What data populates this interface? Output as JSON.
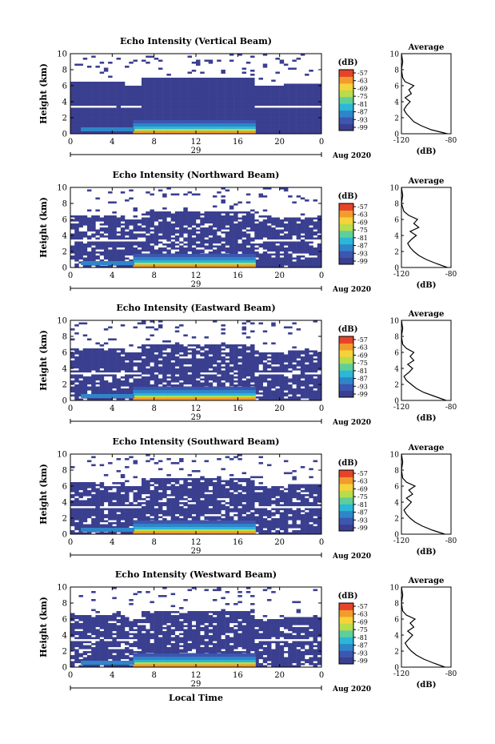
{
  "figure": {
    "xlabel": "Local Time",
    "date_label": "Aug 2020",
    "day_label": "29",
    "ylabel": "Height (km)",
    "avg_title": "Average",
    "avg_xlabel": "(dB)",
    "cb_title": "(dB)",
    "cb_ticks": [
      "-57",
      "-63",
      "-69",
      "-75",
      "-81",
      "-87",
      "-93",
      "-99"
    ],
    "colors": {
      "background_echo": "#3a3f8f",
      "colormap": [
        "#3a3f8f",
        "#3d56b0",
        "#2e86c8",
        "#2bb7d8",
        "#5fcf9a",
        "#b9dc4a",
        "#f5d33a",
        "#f39b2b",
        "#e5442a"
      ]
    }
  },
  "chart_data": [
    {
      "type": "heatmap",
      "title": "Echo Intensity (Vertical Beam)",
      "xlabel": "",
      "ylabel": "Height (km)",
      "xlim": [
        0,
        24
      ],
      "ylim": [
        0,
        10
      ],
      "xticks": [
        "0",
        "4",
        "8",
        "12",
        "16",
        "20",
        "0"
      ],
      "yticks": [
        "0",
        "2",
        "4",
        "6",
        "8",
        "10"
      ],
      "colorbar": {
        "label": "(dB)",
        "range": [
          -99,
          -57
        ]
      },
      "average": {
        "xlim": [
          -120,
          -80
        ],
        "xticks": [
          "-120",
          "-80"
        ],
        "xlabel": "(dB)",
        "height": [
          0,
          0.5,
          1,
          1.5,
          2,
          2.5,
          3,
          3.5,
          4,
          4.5,
          5,
          5.5,
          6,
          6.5,
          7,
          8,
          9,
          10
        ],
        "value": [
          -83,
          -96,
          -104,
          -110,
          -113,
          -116,
          -118,
          -116,
          -113,
          -117,
          -112,
          -114,
          -110,
          -117,
          -119,
          -120,
          -119,
          -120
        ]
      }
    },
    {
      "type": "heatmap",
      "title": "Echo Intensity (Northward Beam)",
      "xlabel": "",
      "ylabel": "Height (km)",
      "xlim": [
        0,
        24
      ],
      "ylim": [
        0,
        10
      ],
      "xticks": [
        "0",
        "4",
        "8",
        "12",
        "16",
        "20",
        "0"
      ],
      "yticks": [
        "0",
        "2",
        "4",
        "6",
        "8",
        "10"
      ],
      "colorbar": {
        "label": "(dB)",
        "range": [
          -99,
          -57
        ]
      },
      "average": {
        "xlim": [
          -120,
          -80
        ],
        "xticks": [
          "-120",
          "-80"
        ],
        "xlabel": "(dB)",
        "height": [
          0,
          0.5,
          1,
          1.5,
          2,
          2.5,
          3,
          3.5,
          4,
          4.5,
          5,
          5.5,
          6,
          6.5,
          7,
          8,
          9,
          10
        ],
        "value": [
          -83,
          -92,
          -100,
          -106,
          -110,
          -113,
          -115,
          -112,
          -108,
          -113,
          -106,
          -110,
          -107,
          -114,
          -118,
          -120,
          -119,
          -120
        ]
      }
    },
    {
      "type": "heatmap",
      "title": "Echo Intensity (Eastward Beam)",
      "xlabel": "",
      "ylabel": "Height (km)",
      "xlim": [
        0,
        24
      ],
      "ylim": [
        0,
        10
      ],
      "xticks": [
        "0",
        "4",
        "8",
        "12",
        "16",
        "20",
        "0"
      ],
      "yticks": [
        "0",
        "2",
        "4",
        "6",
        "8",
        "10"
      ],
      "colorbar": {
        "label": "(dB)",
        "range": [
          -99,
          -57
        ]
      },
      "average": {
        "xlim": [
          -120,
          -80
        ],
        "xticks": [
          "-120",
          "-80"
        ],
        "xlabel": "(dB)",
        "height": [
          0,
          0.5,
          1,
          1.5,
          2,
          2.5,
          3,
          3.5,
          4,
          4.5,
          5,
          5.5,
          6,
          6.5,
          7,
          8,
          9,
          10
        ],
        "value": [
          -84,
          -93,
          -102,
          -108,
          -112,
          -116,
          -118,
          -114,
          -111,
          -115,
          -110,
          -113,
          -110,
          -116,
          -119,
          -120,
          -119,
          -120
        ]
      }
    },
    {
      "type": "heatmap",
      "title": "Echo Intensity (Southward Beam)",
      "xlabel": "",
      "ylabel": "Height (km)",
      "xlim": [
        0,
        24
      ],
      "ylim": [
        0,
        10
      ],
      "xticks": [
        "0",
        "4",
        "8",
        "12",
        "16",
        "20",
        "0"
      ],
      "yticks": [
        "0",
        "2",
        "4",
        "6",
        "8",
        "10"
      ],
      "colorbar": {
        "label": "(dB)",
        "range": [
          -99,
          -57
        ]
      },
      "average": {
        "xlim": [
          -120,
          -80
        ],
        "xticks": [
          "-120",
          "-80"
        ],
        "xlabel": "(dB)",
        "height": [
          0,
          0.5,
          1,
          1.5,
          2,
          2.5,
          3,
          3.5,
          4,
          4.5,
          5,
          5.5,
          6,
          6.5,
          7,
          8,
          9,
          10
        ],
        "value": [
          -85,
          -95,
          -103,
          -109,
          -113,
          -116,
          -118,
          -115,
          -112,
          -116,
          -111,
          -114,
          -109,
          -116,
          -119,
          -120,
          -119,
          -120
        ]
      }
    },
    {
      "type": "heatmap",
      "title": "Echo Intensity (Westward Beam)",
      "xlabel": "Local Time",
      "ylabel": "Height (km)",
      "xlim": [
        0,
        24
      ],
      "ylim": [
        0,
        10
      ],
      "xticks": [
        "0",
        "4",
        "8",
        "12",
        "16",
        "20",
        "0"
      ],
      "yticks": [
        "0",
        "2",
        "4",
        "6",
        "8",
        "10"
      ],
      "colorbar": {
        "label": "(dB)",
        "range": [
          -99,
          -57
        ]
      },
      "average": {
        "xlim": [
          -120,
          -80
        ],
        "xticks": [
          "-120",
          "-80"
        ],
        "xlabel": "(dB)",
        "height": [
          0,
          0.5,
          1,
          1.5,
          2,
          2.5,
          3,
          3.5,
          4,
          4.5,
          5,
          5.5,
          6,
          6.5,
          7,
          8,
          9,
          10
        ],
        "value": [
          -85,
          -94,
          -102,
          -108,
          -112,
          -115,
          -117,
          -114,
          -111,
          -115,
          -110,
          -113,
          -109,
          -116,
          -119,
          -120,
          -119,
          -120
        ]
      }
    }
  ]
}
